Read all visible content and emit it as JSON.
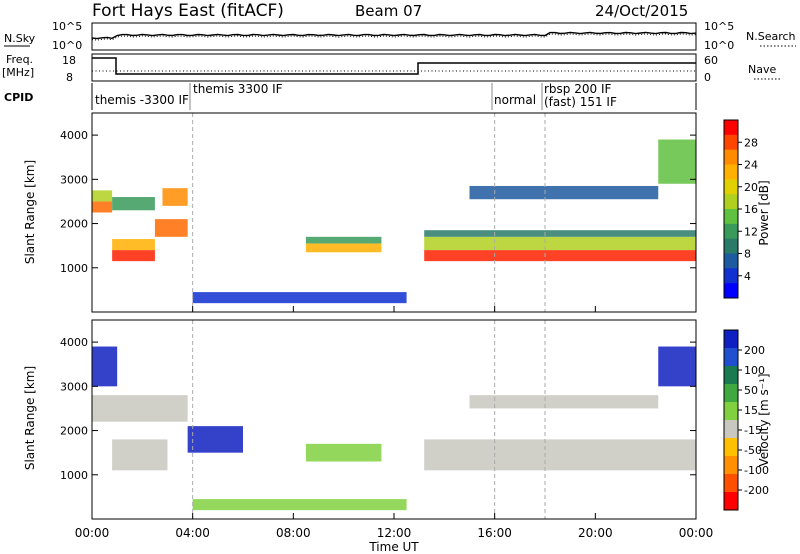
{
  "header": {
    "station": "Fort Hays East (fitACF)",
    "beam": "Beam 07",
    "date": "24/Oct/2015"
  },
  "top_panels": {
    "nsky_label": "N.Sky",
    "nsky_ticks": [
      "10^5",
      "10^0"
    ],
    "nsearch_label": "N.Search",
    "nsearch_ticks": [
      "10^5",
      "10^0"
    ],
    "freq_label_1": "Freq.",
    "freq_label_2": "[MHz]",
    "freq_ticks": [
      "18",
      "8"
    ],
    "nave_label": "Nave",
    "nave_ticks": [
      "60",
      "0"
    ],
    "cpid_label": "CPID",
    "cpid_segments": [
      {
        "label": "themis -3300 IF",
        "start_h": 0
      },
      {
        "label": "themis 3300 IF",
        "start_h": 4
      },
      {
        "label": "normal",
        "start_h": 16
      },
      {
        "label": "rbsp 200 IF",
        "start_h": 18
      },
      {
        "label": "(fast) 151 IF",
        "start_h": 18
      }
    ]
  },
  "power_colorbar": {
    "label": "Power [dB]",
    "ticks": [
      "28",
      "24",
      "20",
      "16",
      "12",
      "8",
      "4"
    ],
    "colors": [
      "#ff0000",
      "#ff4500",
      "#ff8c00",
      "#ffb000",
      "#e0d000",
      "#b0d020",
      "#60c040",
      "#3a9a5a",
      "#2a7a6a",
      "#1e5aa0",
      "#1030d0",
      "#0000ff"
    ]
  },
  "velocity_colorbar": {
    "label": "Velocity [m s⁻¹]",
    "ticks": [
      "200",
      "100",
      "50",
      "15",
      "-15",
      "-50",
      "-100",
      "-200"
    ],
    "colors": [
      "#1020c0",
      "#2050d0",
      "#1a7a50",
      "#40a840",
      "#80d040",
      "#c8c8c0",
      "#ffc000",
      "#ff9000",
      "#ff5000",
      "#ff0000"
    ]
  },
  "chart_data": [
    {
      "type": "heatmap",
      "name": "power",
      "ylabel": "Slant Range [km]",
      "xlim_h": [
        0,
        24
      ],
      "ylim": [
        0,
        4500
      ],
      "yticks": [
        1000,
        2000,
        3000,
        4000
      ],
      "xticks": [
        "00:00",
        "04:00",
        "08:00",
        "12:00",
        "16:00",
        "20:00",
        "00:00"
      ],
      "bands": [
        {
          "t0": 0.0,
          "t1": 0.8,
          "r0": 2250,
          "r1": 2500,
          "color": "#ff6a00"
        },
        {
          "t0": 0.0,
          "t1": 0.8,
          "r0": 2500,
          "r1": 2750,
          "color": "#b0d020"
        },
        {
          "t0": 0.8,
          "t1": 2.5,
          "r0": 1150,
          "r1": 1400,
          "color": "#ff2000"
        },
        {
          "t0": 0.8,
          "t1": 2.5,
          "r0": 1400,
          "r1": 1650,
          "color": "#ffb000"
        },
        {
          "t0": 0.8,
          "t1": 2.5,
          "r0": 2300,
          "r1": 2600,
          "color": "#3a9a5a"
        },
        {
          "t0": 2.5,
          "t1": 3.8,
          "r0": 1700,
          "r1": 2100,
          "color": "#ff6a00"
        },
        {
          "t0": 2.8,
          "t1": 3.8,
          "r0": 2400,
          "r1": 2800,
          "color": "#ff8c00"
        },
        {
          "t0": 8.5,
          "t1": 11.5,
          "r0": 1350,
          "r1": 1550,
          "color": "#ffb000"
        },
        {
          "t0": 8.5,
          "t1": 11.5,
          "r0": 1550,
          "r1": 1700,
          "color": "#3a9a5a"
        },
        {
          "t0": 13.2,
          "t1": 24.0,
          "r0": 1150,
          "r1": 1400,
          "color": "#ff2000"
        },
        {
          "t0": 13.2,
          "t1": 24.0,
          "r0": 1400,
          "r1": 1700,
          "color": "#b0d020"
        },
        {
          "t0": 13.2,
          "t1": 24.0,
          "r0": 1700,
          "r1": 1850,
          "color": "#2a7a6a"
        },
        {
          "t0": 15.0,
          "t1": 22.5,
          "r0": 2550,
          "r1": 2850,
          "color": "#1e5aa0"
        },
        {
          "t0": 22.5,
          "t1": 24.0,
          "r0": 2900,
          "r1": 3900,
          "color": "#60c040"
        },
        {
          "t0": 4.0,
          "t1": 12.5,
          "r0": 200,
          "r1": 450,
          "color": "#1030d0"
        }
      ]
    },
    {
      "type": "heatmap",
      "name": "velocity",
      "ylabel": "Slant Range [km]",
      "xlabel": "Time UT",
      "xlim_h": [
        0,
        24
      ],
      "ylim": [
        0,
        4500
      ],
      "yticks": [
        1000,
        2000,
        3000,
        4000
      ],
      "xticks": [
        "00:00",
        "04:00",
        "08:00",
        "12:00",
        "16:00",
        "20:00",
        "00:00"
      ],
      "bands": [
        {
          "t0": 0.0,
          "t1": 1.0,
          "r0": 3000,
          "r1": 3900,
          "color": "#1020c0"
        },
        {
          "t0": 0.0,
          "t1": 3.8,
          "r0": 2200,
          "r1": 2800,
          "color": "#c8c8c0"
        },
        {
          "t0": 0.8,
          "t1": 3.0,
          "r0": 1100,
          "r1": 1800,
          "color": "#c8c8c0"
        },
        {
          "t0": 3.8,
          "t1": 6.0,
          "r0": 1500,
          "r1": 2100,
          "color": "#1020c0"
        },
        {
          "t0": 8.5,
          "t1": 11.5,
          "r0": 1300,
          "r1": 1700,
          "color": "#80d040"
        },
        {
          "t0": 13.2,
          "t1": 24.0,
          "r0": 1100,
          "r1": 1800,
          "color": "#c8c8c0"
        },
        {
          "t0": 15.0,
          "t1": 22.5,
          "r0": 2500,
          "r1": 2800,
          "color": "#c8c8c0"
        },
        {
          "t0": 22.5,
          "t1": 24.0,
          "r0": 3000,
          "r1": 3900,
          "color": "#1020c0"
        },
        {
          "t0": 4.0,
          "t1": 12.5,
          "r0": 200,
          "r1": 450,
          "color": "#80d040"
        }
      ]
    }
  ]
}
